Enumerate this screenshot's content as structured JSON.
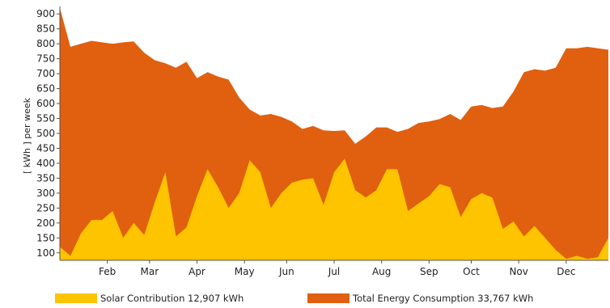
{
  "chart_data": {
    "type": "area",
    "ylabel": "[ kWh ]  per week",
    "ylim": [
      75,
      925
    ],
    "yticks": [
      100,
      150,
      200,
      250,
      300,
      350,
      400,
      450,
      500,
      550,
      600,
      650,
      700,
      750,
      800,
      850,
      900
    ],
    "xlim": [
      0,
      52
    ],
    "xticks": [
      {
        "label": "Feb",
        "x": 4.5
      },
      {
        "label": "Mar",
        "x": 8.5
      },
      {
        "label": "Apr",
        "x": 13
      },
      {
        "label": "May",
        "x": 17.5
      },
      {
        "label": "Jun",
        "x": 21.5
      },
      {
        "label": "Jul",
        "x": 26
      },
      {
        "label": "Aug",
        "x": 30.5
      },
      {
        "label": "Sep",
        "x": 35
      },
      {
        "label": "Oct",
        "x": 39
      },
      {
        "label": "Nov",
        "x": 43.5
      },
      {
        "label": "Dec",
        "x": 48
      }
    ],
    "grid": false,
    "legend_position": "bottom",
    "series": [
      {
        "name": "Total Energy Consumption 33,767 kWh",
        "color": "#E06010",
        "values": [
          920,
          790,
          800,
          810,
          805,
          800,
          805,
          808,
          770,
          745,
          735,
          720,
          740,
          685,
          705,
          690,
          680,
          620,
          580,
          560,
          565,
          555,
          540,
          515,
          525,
          510,
          508,
          510,
          465,
          490,
          520,
          520,
          505,
          515,
          535,
          540,
          548,
          565,
          545,
          590,
          595,
          585,
          590,
          640,
          705,
          715,
          710,
          720,
          785,
          785,
          790,
          785,
          780
        ]
      },
      {
        "name": "Solar Contribution 12,907 kWh",
        "color": "#FFC400",
        "values": [
          120,
          90,
          165,
          210,
          210,
          240,
          150,
          200,
          160,
          270,
          370,
          155,
          185,
          290,
          380,
          320,
          250,
          300,
          410,
          370,
          250,
          300,
          335,
          345,
          350,
          260,
          370,
          415,
          310,
          285,
          310,
          380,
          380,
          240,
          265,
          290,
          330,
          320,
          220,
          280,
          300,
          285,
          180,
          205,
          155,
          190,
          150,
          110,
          80,
          90,
          80,
          85,
          150
        ]
      }
    ]
  }
}
